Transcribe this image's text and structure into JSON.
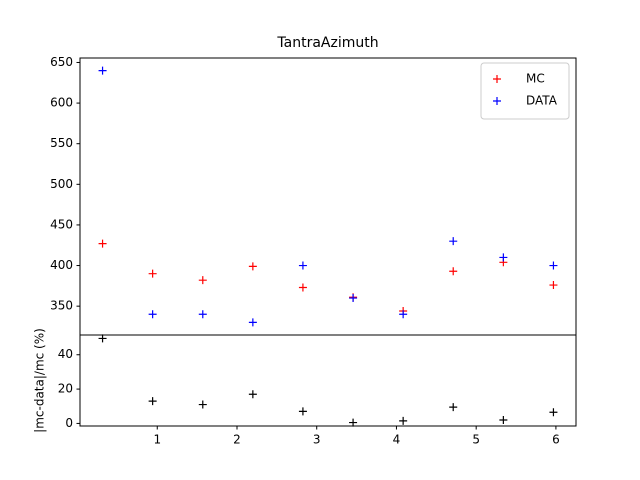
{
  "chart_data": [
    {
      "type": "scatter",
      "title": "TantraAzimuth",
      "x": [
        0.314,
        0.942,
        1.571,
        2.199,
        2.827,
        3.456,
        4.084,
        4.712,
        5.341,
        5.969
      ],
      "series": [
        {
          "name": "MC",
          "color": "#ff0000",
          "values": [
            427,
            390,
            382,
            399,
            373,
            361,
            344,
            393,
            404,
            376
          ]
        },
        {
          "name": "DATA",
          "color": "#0000ff",
          "values": [
            640,
            340,
            340,
            330,
            400,
            360,
            340,
            430,
            410,
            400
          ]
        }
      ],
      "xlim": [
        0.031,
        6.252
      ],
      "ylim": [
        314.5,
        655.5
      ],
      "yticks": [
        350,
        400,
        450,
        500,
        550,
        600,
        650
      ],
      "legend": "upper right"
    },
    {
      "type": "scatter",
      "ylabel": "|mc-data|/mc (%)",
      "x": [
        0.314,
        0.942,
        1.571,
        2.199,
        2.827,
        3.456,
        4.084,
        4.712,
        5.341,
        5.969
      ],
      "series": [
        {
          "color": "#000000",
          "values": [
            49.5,
            13,
            11,
            17,
            7,
            0.5,
            1.5,
            9.5,
            2,
            6.5
          ]
        }
      ],
      "xlim": [
        0.031,
        6.252
      ],
      "ylim": [
        -1.5,
        51.5
      ],
      "xticks": [
        1,
        2,
        3,
        4,
        5,
        6
      ],
      "yticks": [
        0,
        20,
        40
      ]
    }
  ]
}
